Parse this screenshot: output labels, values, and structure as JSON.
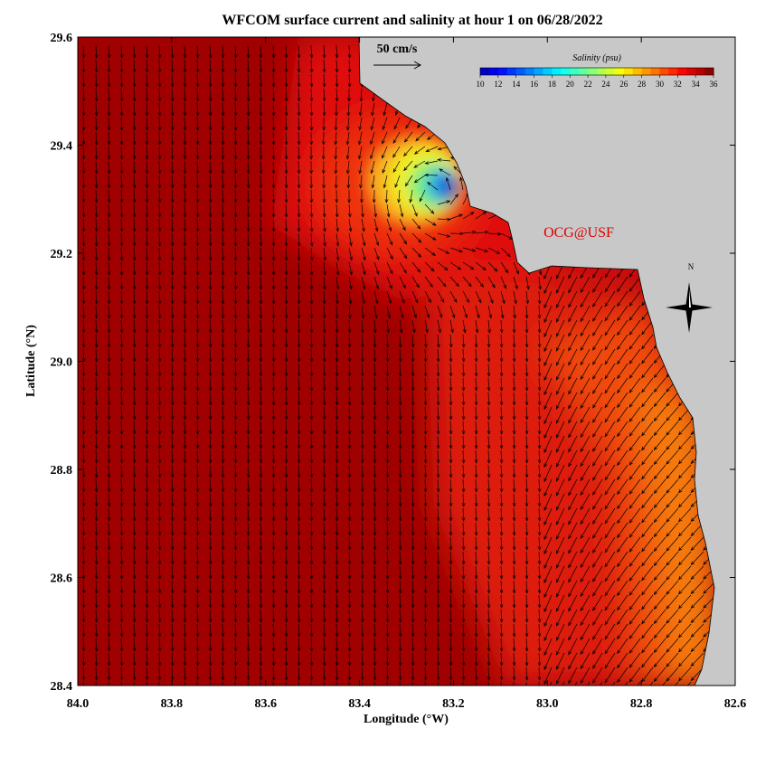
{
  "chart_data": {
    "type": "map",
    "title": "WFCOM surface current and salinity at hour 1 on 06/28/2022",
    "x_label": "Longitude (°W)",
    "y_label": "Latitude (°N)",
    "xlim": [
      84.0,
      82.6
    ],
    "ylim": [
      28.4,
      29.6
    ],
    "xticks": [
      {
        "value": 84,
        "label": "84.0"
      },
      {
        "value": 83.8,
        "label": "83.8"
      },
      {
        "value": 83.6,
        "label": "83.6"
      },
      {
        "value": 83.4,
        "label": "83.4"
      },
      {
        "value": 83.2,
        "label": "83.2"
      },
      {
        "value": 83,
        "label": "83.0"
      },
      {
        "value": 82.8,
        "label": "82.8"
      },
      {
        "value": 82.6,
        "label": "82.6"
      }
    ],
    "yticks": [
      {
        "value": 28.4,
        "label": "28.4"
      },
      {
        "value": 28.6,
        "label": "28.6"
      },
      {
        "value": 28.8,
        "label": "28.8"
      },
      {
        "value": 29,
        "label": "29.0"
      },
      {
        "value": 29.2,
        "label": "29.2"
      },
      {
        "value": 29.4,
        "label": "29.4"
      },
      {
        "value": 29.6,
        "label": "29.6"
      }
    ],
    "colorbar": {
      "title": "Salinity (psu)",
      "clim": [
        10,
        36
      ],
      "ticks": [
        10,
        12,
        14,
        16,
        18,
        20,
        22,
        24,
        26,
        28,
        30,
        32,
        34,
        36
      ]
    },
    "scale_label": "50 cm/s",
    "credit": "OCG@USF",
    "compass_label": "N"
  }
}
